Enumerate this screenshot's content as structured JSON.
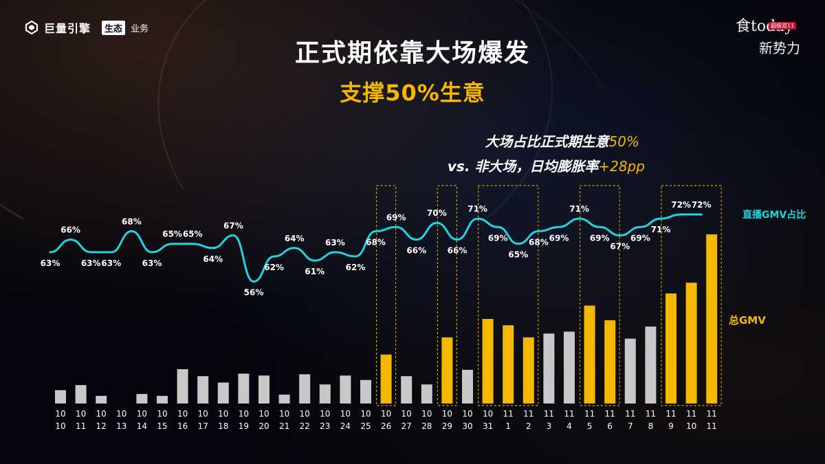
{
  "header": {
    "brand": "巨量引擎",
    "badge": "生态",
    "business": "业务"
  },
  "corner_logo": {
    "line1": "食today",
    "tag": "超级双11",
    "line2": "新势力"
  },
  "annotations": {
    "line1_text": "大场占比正式期生意",
    "line1_highlight": "50%",
    "line2_text": "vs. 非大场，日均膨胀率",
    "line2_highlight": "+28pp"
  },
  "chart_data": {
    "type": "bar",
    "title": "正式期依靠大场爆发",
    "subtitle": "支撑50%生意",
    "colors": {
      "bar": "#c8c8c8",
      "highlight_bar": "#f5b800",
      "line": "#1fd6e0",
      "highlight_box": "#d9a400"
    },
    "categories": [
      [
        "10",
        "10"
      ],
      [
        "10",
        "11"
      ],
      [
        "10",
        "12"
      ],
      [
        "10",
        "13"
      ],
      [
        "10",
        "14"
      ],
      [
        "10",
        "15"
      ],
      [
        "10",
        "16"
      ],
      [
        "10",
        "17"
      ],
      [
        "10",
        "18"
      ],
      [
        "10",
        "19"
      ],
      [
        "10",
        "20"
      ],
      [
        "10",
        "21"
      ],
      [
        "10",
        "22"
      ],
      [
        "10",
        "23"
      ],
      [
        "10",
        "24"
      ],
      [
        "10",
        "25"
      ],
      [
        "10",
        "26"
      ],
      [
        "10",
        "27"
      ],
      [
        "10",
        "28"
      ],
      [
        "10",
        "29"
      ],
      [
        "10",
        "30"
      ],
      [
        "10",
        "31"
      ],
      [
        "11",
        "1"
      ],
      [
        "11",
        "2"
      ],
      [
        "11",
        "3"
      ],
      [
        "11",
        "4"
      ],
      [
        "11",
        "5"
      ],
      [
        "11",
        "6"
      ],
      [
        "11",
        "7"
      ],
      [
        "11",
        "8"
      ],
      [
        "11",
        "9"
      ],
      [
        "11",
        "10"
      ],
      [
        "11",
        "11"
      ]
    ],
    "series": [
      {
        "name": "总GMV",
        "type": "bar",
        "values": [
          2.1,
          2.9,
          1.2,
          0,
          1.5,
          1.2,
          5.4,
          4.3,
          3.3,
          4.7,
          4.4,
          1.4,
          4.6,
          3.0,
          4.4,
          3.7,
          7.7,
          4.3,
          3.0,
          10.4,
          5.3,
          13.3,
          12.3,
          10.4,
          11.0,
          11.3,
          15.4,
          13.1,
          10.2,
          12.1,
          17.3,
          19.0,
          26.6
        ],
        "highlight_indices": [
          16,
          19,
          21,
          22,
          23,
          26,
          27,
          30,
          31,
          32
        ]
      },
      {
        "name": "直播GMV占比",
        "type": "line",
        "values": [
          63,
          66,
          63,
          63,
          68,
          63,
          65,
          65,
          64,
          67,
          56,
          62,
          64,
          61,
          63,
          62,
          68,
          69,
          66,
          70,
          66,
          71,
          69,
          65,
          68,
          69,
          71,
          69,
          67,
          69,
          71,
          72,
          72
        ],
        "labels": [
          "63%",
          "66%",
          "63%",
          "63%",
          "68%",
          "63%",
          "65%",
          "65%",
          "64%",
          "67%",
          "56%",
          "62%",
          "64%",
          "61%",
          "63%",
          "62%",
          "68%",
          "69%",
          "66%",
          "70%",
          "66%",
          "71%",
          "69%",
          "65%",
          "68%",
          "69%",
          "71%",
          "69%",
          "67%",
          "69%",
          "71%",
          "72%",
          "72%"
        ]
      }
    ],
    "highlight_groups": [
      [
        16,
        16
      ],
      [
        19,
        19
      ],
      [
        21,
        23
      ],
      [
        26,
        27
      ],
      [
        30,
        32
      ]
    ]
  }
}
